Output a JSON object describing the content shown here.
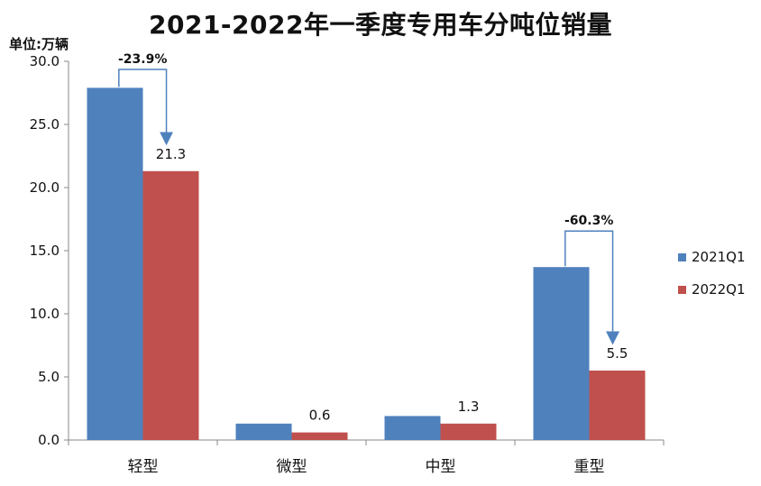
{
  "chart_data": {
    "type": "bar",
    "title": "2021-2022年一季度专用车分吨位销量",
    "unit_label": "单位:万辆",
    "categories": [
      "轻型",
      "微型",
      "中型",
      "重型"
    ],
    "series": [
      {
        "name": "2021Q1",
        "color": "#4f81bd",
        "values": [
          27.9,
          1.3,
          1.9,
          13.7
        ]
      },
      {
        "name": "2022Q1",
        "color": "#c0504d",
        "values": [
          21.3,
          0.6,
          1.3,
          5.5
        ]
      }
    ],
    "data_labels": {
      "series": "2022Q1",
      "text": [
        "21.3",
        "0.6",
        "1.3",
        "5.5"
      ]
    },
    "ylim": [
      0,
      30
    ],
    "yticks": [
      "0.0",
      "5.0",
      "10.0",
      "15.0",
      "20.0",
      "25.0",
      "30.0"
    ],
    "annotations": [
      {
        "category": "轻型",
        "text": "-23.9%"
      },
      {
        "category": "重型",
        "text": "-60.3%"
      }
    ],
    "legend_position": "right",
    "grid": false
  }
}
